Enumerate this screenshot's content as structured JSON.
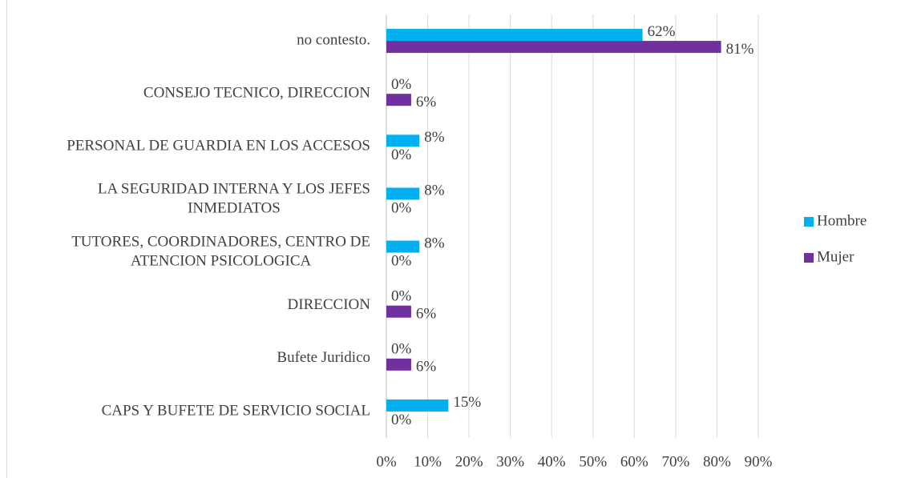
{
  "chart_data": {
    "type": "hbar",
    "categories": [
      "no contesto.",
      "CONSEJO TECNICO, DIRECCION",
      "PERSONAL DE GUARDIA EN LOS ACCESOS",
      "LA SEGURIDAD INTERNA Y LOS JEFES INMEDIATOS",
      "TUTORES, COORDINADORES, CENTRO DE ATENCION PSICOLOGICA",
      "DIRECCION",
      "Bufete Juridico",
      "CAPS Y BUFETE DE SERVICIO SOCIAL"
    ],
    "series": [
      {
        "name": "Hombre",
        "color": "#00b0f0",
        "values": [
          62,
          0,
          8,
          8,
          8,
          0,
          0,
          15
        ],
        "value_labels": [
          "62%",
          "0%",
          "8%",
          "8%",
          "8%",
          "0%",
          "0%",
          "15%"
        ]
      },
      {
        "name": "Mujer",
        "color": "#7030a0",
        "values": [
          81,
          6,
          0,
          0,
          0,
          6,
          6,
          0
        ],
        "value_labels": [
          "81%",
          "6%",
          "0%",
          "0%",
          "0%",
          "6%",
          "6%",
          "0%"
        ]
      }
    ],
    "xlim": [
      0,
      90
    ],
    "xticks": [
      {
        "value": 0,
        "label": "0%"
      },
      {
        "value": 10,
        "label": "10%"
      },
      {
        "value": 20,
        "label": "20%"
      },
      {
        "value": 30,
        "label": "30%"
      },
      {
        "value": 40,
        "label": "40%"
      },
      {
        "value": 50,
        "label": "50%"
      },
      {
        "value": 60,
        "label": "60%"
      },
      {
        "value": 70,
        "label": "70%"
      },
      {
        "value": 80,
        "label": "80%"
      },
      {
        "value": 90,
        "label": "90%"
      }
    ],
    "grid": true,
    "legend": "right"
  }
}
